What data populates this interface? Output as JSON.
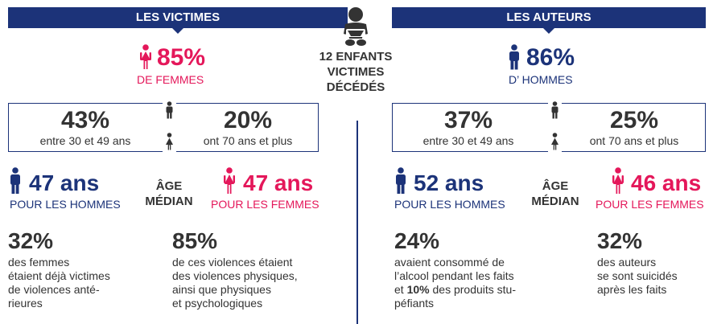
{
  "colors": {
    "navy": "#1c3379",
    "pink": "#e4175a",
    "text": "#333333"
  },
  "icons": {
    "woman": "woman-icon",
    "man": "man-icon",
    "baby": "baby-icon"
  },
  "center": {
    "line1": "12 ENFANTS",
    "line2": "VICTIMES",
    "line3": "DÉCÉDÉS"
  },
  "victims": {
    "banner": "LES VICTIMES",
    "share_pct": "85%",
    "share_label": "DE FEMMES",
    "age_box": [
      {
        "pct": "43%",
        "label": "entre 30 et 49 ans"
      },
      {
        "pct": "20%",
        "label": "ont 70 ans et plus"
      }
    ],
    "median_men_value": "47 ans",
    "median_men_label": "POUR LES HOMMES",
    "median_women_value": "47 ans",
    "median_women_label": "POUR LES FEMMES",
    "median_line1": "ÂGE",
    "median_line2": "MÉDIAN",
    "stat1_pct": "32%",
    "stat1_lines": [
      "des femmes",
      "étaient déjà victimes",
      "de violences anté-",
      "rieures"
    ],
    "stat2_pct": "85%",
    "stat2_lines": [
      "de ces violences étaient",
      "des violences physiques,",
      "ainsi que physiques",
      "et psychologiques"
    ]
  },
  "authors": {
    "banner": "LES AUTEURS",
    "share_pct": "86%",
    "share_label": "D’ HOMMES",
    "age_box": [
      {
        "pct": "37%",
        "label": "entre 30 et 49 ans"
      },
      {
        "pct": "25%",
        "label": "ont 70 ans et plus"
      }
    ],
    "median_men_value": "52 ans",
    "median_men_label": "POUR LES HOMMES",
    "median_women_value": "46 ans",
    "median_women_label": "POUR LES FEMMES",
    "median_line1": "ÂGE",
    "median_line2": "MÉDIAN",
    "stat1_pct": "24%",
    "stat1_line1": "avaient consommé de",
    "stat1_line2": "l’alcool pendant les faits",
    "stat1_line3_pre": "et ",
    "stat1_line3_bold": "10%",
    "stat1_line3_post": " des produits stu-",
    "stat1_line4": "péfiants",
    "stat2_pct": "32%",
    "stat2_lines": [
      "des auteurs",
      "se sont suicidés",
      "après les faits"
    ]
  }
}
